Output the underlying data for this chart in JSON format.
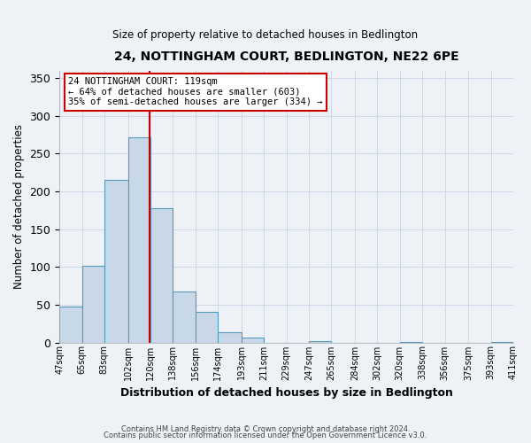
{
  "title": "24, NOTTINGHAM COURT, BEDLINGTON, NE22 6PE",
  "subtitle": "Size of property relative to detached houses in Bedlington",
  "xlabel": "Distribution of detached houses by size in Bedlington",
  "ylabel": "Number of detached properties",
  "bar_left_edges": [
    47,
    65,
    83,
    102,
    120,
    138,
    156,
    174,
    193,
    211,
    229,
    247,
    265,
    284,
    302,
    320,
    338,
    356,
    375,
    393
  ],
  "bar_widths": [
    18,
    18,
    19,
    18,
    18,
    18,
    18,
    19,
    18,
    18,
    18,
    18,
    19,
    18,
    18,
    18,
    18,
    19,
    18,
    18
  ],
  "bar_heights": [
    48,
    101,
    215,
    272,
    178,
    67,
    40,
    14,
    7,
    0,
    0,
    2,
    0,
    0,
    0,
    1,
    0,
    0,
    0,
    1
  ],
  "xtick_labels": [
    "47sqm",
    "65sqm",
    "83sqm",
    "102sqm",
    "120sqm",
    "138sqm",
    "156sqm",
    "174sqm",
    "193sqm",
    "211sqm",
    "229sqm",
    "247sqm",
    "265sqm",
    "284sqm",
    "302sqm",
    "320sqm",
    "338sqm",
    "356sqm",
    "375sqm",
    "393sqm",
    "411sqm"
  ],
  "bar_color": "#c8d8e8",
  "bar_edge_color": "#5599bb",
  "ref_line_x": 119,
  "ref_line_color": "#cc0000",
  "annotation_line1": "24 NOTTINGHAM COURT: 119sqm",
  "annotation_line2": "← 64% of detached houses are smaller (603)",
  "annotation_line3": "35% of semi-detached houses are larger (334) →",
  "annotation_box_color": "#cc0000",
  "ylim": [
    0,
    360
  ],
  "yticks": [
    0,
    50,
    100,
    150,
    200,
    250,
    300,
    350
  ],
  "grid_color": "#ccd9e8",
  "background_color": "#eef2f7",
  "footer_line1": "Contains HM Land Registry data © Crown copyright and database right 2024.",
  "footer_line2": "Contains public sector information licensed under the Open Government Licence v3.0."
}
